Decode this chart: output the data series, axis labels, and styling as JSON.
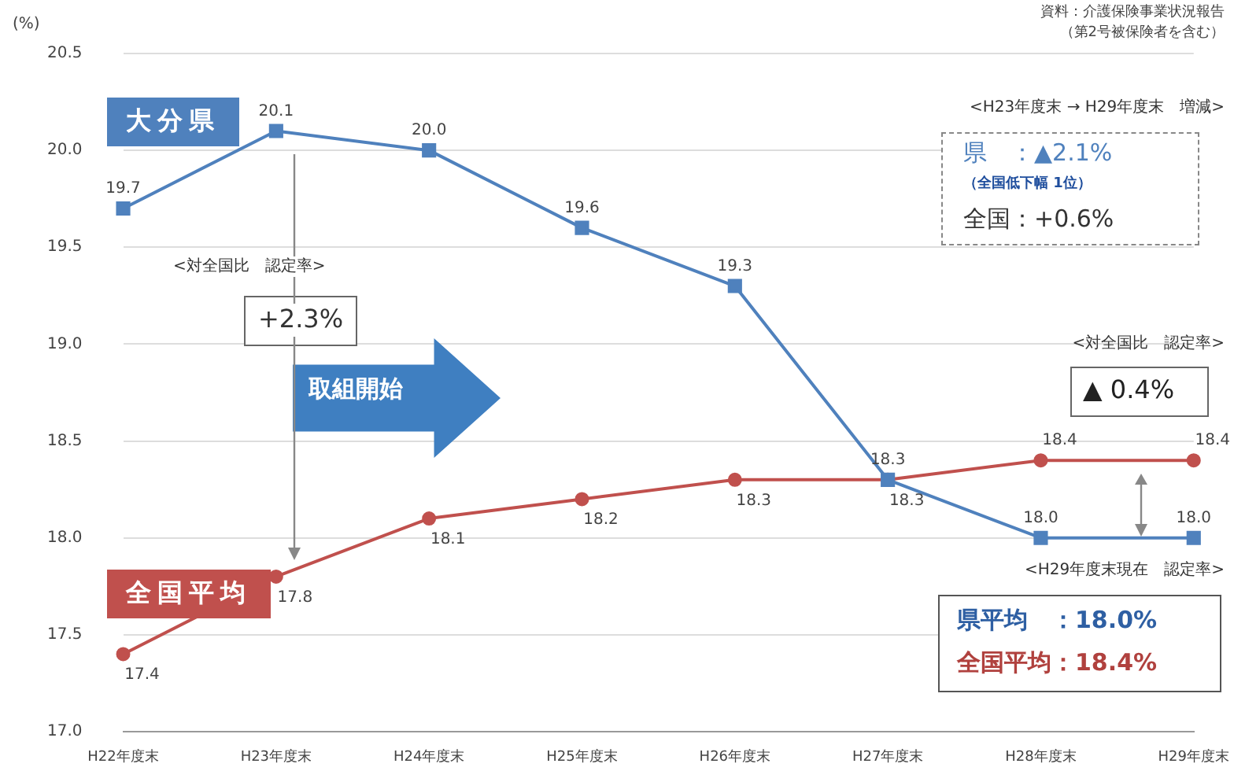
{
  "chart_data": {
    "type": "line",
    "ylabel": "(%)",
    "categories": [
      "H22年度末",
      "H23年度末",
      "H24年度末",
      "H25年度末",
      "H26年度末",
      "H27年度末",
      "H28年度末",
      "H29年度末"
    ],
    "series": [
      {
        "name": "大分県",
        "color": "#4f81bd",
        "marker": "square",
        "values": [
          19.7,
          20.1,
          20.0,
          19.6,
          19.3,
          18.3,
          18.0,
          18.0
        ],
        "value_labels": [
          "19.7",
          "20.1",
          "20.0",
          "19.6",
          "19.3",
          "18.3",
          "18.0",
          "18.0"
        ]
      },
      {
        "name": "全国平均",
        "color": "#c0504d",
        "marker": "circle",
        "values": [
          17.4,
          17.8,
          18.1,
          18.2,
          18.3,
          18.3,
          18.4,
          18.4
        ],
        "value_labels": [
          "17.4",
          "17.8",
          "18.1",
          "18.2",
          "18.3",
          "18.3",
          "18.4",
          "18.4"
        ]
      }
    ],
    "ylim": [
      17.0,
      20.5
    ],
    "yticks": [
      {
        "value": 17,
        "label": "17.0"
      },
      17.5,
      {
        "value": 18,
        "label": "18.0"
      },
      18.5,
      {
        "value": 19,
        "label": "19.0"
      },
      19.5,
      {
        "value": 20,
        "label": "20.0"
      },
      20.5
    ],
    "grid": "y",
    "legend": false,
    "annotations": [
      "資料：介護保険事業状況報告",
      "（第2号被保険者を含む）",
      "<H23年度末 → H29年度末　増減>",
      "県　：▲2.1%",
      "（全国低下幅 1位）",
      "全国：+0.6%",
      "<対全国比　認定率>",
      "+2.3%",
      "取組開始",
      "<対全国比　認定率>",
      "▲ 0.4%",
      "<H29年度末現在　認定率>",
      "県平均　：18.0%",
      "全国平均：18.4%"
    ]
  }
}
